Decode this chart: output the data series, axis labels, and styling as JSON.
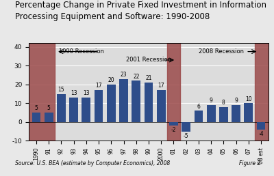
{
  "categories": [
    "1990",
    "91",
    "92",
    "93",
    "94",
    "95",
    "96",
    "97",
    "98",
    "99",
    "2000",
    "01",
    "02",
    "03",
    "04",
    "05",
    "06",
    "07",
    "08 est"
  ],
  "values": [
    5,
    5,
    15,
    13,
    13,
    17,
    20,
    23,
    22,
    21,
    17,
    -2,
    -5,
    6,
    9,
    8,
    9,
    10,
    -4
  ],
  "bar_color": "#2E4D8A",
  "recession_color": "#9B4A4A",
  "bg_color": "#E8E8E8",
  "plot_bg": "#DCDCDC",
  "title_line1": "Percentage Change in Private Fixed Investment in Information",
  "title_line2": "Processing Equipment and Software: 1990-2008",
  "title_fontsize": 8.5,
  "ylabel_ticks": [
    -10,
    0,
    10,
    20,
    30,
    40
  ],
  "ylim": [
    -10,
    42
  ],
  "source_text": "Source: U.S. BEA (estimate by Computer Economics), 2008",
  "figure_text": "Figure 2",
  "recession_1990_label": "← 1990 Recession",
  "recession_2001_label": "2001 Recession →",
  "recession_2008_label": "2008 Recession →"
}
